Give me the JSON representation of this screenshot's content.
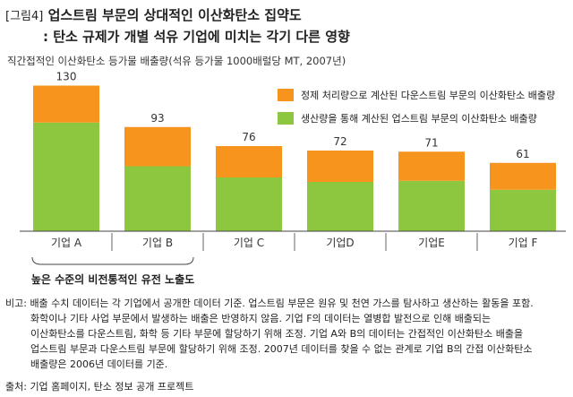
{
  "header": {
    "figure_label": "[그림4]",
    "title": "업스트림 부문의 상대적인 이산화탄소 집약도",
    "subtitle": ": 탄소 규제가 개별 석유 기업에 미치는 각기 다른 영향"
  },
  "colors": {
    "top": "#f7941d",
    "bottom": "#8dc63f"
  },
  "chart_data": {
    "type": "bar",
    "stacked": true,
    "unit_label": "직간접적인 이산화탄소 등가물 배출량(석유 등가물 1000배럴당 MT, 2007년)",
    "categories": [
      "기업 A",
      "기업 B",
      "기업 C",
      "기업D",
      "기업E",
      "기업 F"
    ],
    "totals": [
      130,
      93,
      76,
      72,
      71,
      61
    ],
    "series": [
      {
        "name": "생산량을 통해 계산된 업스트림 부문의 이산화탄소 배출량",
        "values": [
          97,
          58,
          48,
          44,
          45,
          37
        ]
      },
      {
        "name": "정제 처리량으로 계산된 다운스트림 부문의 이산화탄소 배출량",
        "values": [
          33,
          35,
          28,
          28,
          26,
          24
        ]
      }
    ],
    "ylim": [
      0,
      140
    ],
    "annotation": "높은 수준의 비전통적인 유전 노출도"
  },
  "notes": {
    "lines": [
      "비고: 배출 수치 데이터는 각 기업에서 공개한 데이터 기준. 업스트림 부문은 원유 및 천연 가스를 탐사하고 생산하는 활동을 포함.",
      "화학이나 기타 사업 부문에서 발생하는 배출은 반영하지 않음. 기업 F의 데이터는 열병합 발전으로 인해 배출되는",
      "이산화탄소를 다운스트림, 화학 등 기타 부문에 할당하기 위해 조정. 기업 A와 B의 데이터는 간접적인 이산화탄소 배출을",
      "업스트림 부문과 다운스트림 부문에 할당하기 위해 조정. 2007년 데이터를 찾을 수 없는 관계로 기업 B의 간접 이산화탄소",
      "배출량은 2006년 데이터를 기준."
    ],
    "source": "출처: 기업 홈페이지, 탄소 정보 공개 프로젝트"
  }
}
